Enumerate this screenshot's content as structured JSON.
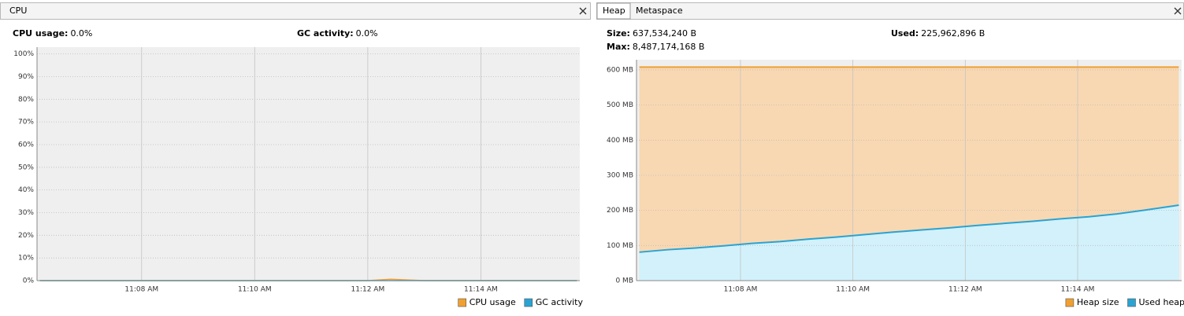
{
  "cpu_panel": {
    "tab": "CPU",
    "stats": [
      {
        "label": "CPU usage:",
        "value": "0.0%"
      },
      {
        "label": "GC activity:",
        "value": "0.0%"
      }
    ]
  },
  "memory_panel": {
    "tabs": [
      "Heap",
      "Metaspace"
    ],
    "stats": [
      {
        "label": "Size:",
        "value": "637,534,240 B"
      },
      {
        "label": "Max:",
        "value": "8,487,174,168 B"
      },
      {
        "label": "Used:",
        "value": "225,962,896 B"
      }
    ]
  },
  "chart_data": [
    {
      "type": "line",
      "grid": true,
      "legend": "bottom right",
      "xlim": [
        666.15,
        675.75
      ],
      "xticks": [
        {
          "value": 668,
          "label": "11:08 AM"
        },
        {
          "value": 670,
          "label": "11:10 AM"
        },
        {
          "value": 672,
          "label": "11:12 AM"
        },
        {
          "value": 674,
          "label": "11:14 AM"
        }
      ],
      "ylim": [
        0,
        103
      ],
      "yticks": [
        {
          "value": 0,
          "label": "0%"
        },
        {
          "value": 10,
          "label": "10%"
        },
        {
          "value": 20,
          "label": "20%"
        },
        {
          "value": 30,
          "label": "30%"
        },
        {
          "value": 40,
          "label": "40%"
        },
        {
          "value": 50,
          "label": "50%"
        },
        {
          "value": 60,
          "label": "60%"
        },
        {
          "value": 70,
          "label": "70%"
        },
        {
          "value": 80,
          "label": "80%"
        },
        {
          "value": 90,
          "label": "90%"
        },
        {
          "value": 100,
          "label": "100%"
        }
      ],
      "x": [
        666.2,
        667,
        668,
        669,
        670,
        671,
        672,
        672.4,
        673,
        674,
        675,
        675.7
      ],
      "series": [
        {
          "name": "CPU usage",
          "color": "#f0a030",
          "values": [
            0,
            0,
            0,
            0,
            0,
            0,
            0,
            0.6,
            0,
            0,
            0,
            0
          ]
        },
        {
          "name": "GC activity",
          "color": "#2aa3d3",
          "values": [
            0,
            0,
            0,
            0,
            0,
            0,
            0,
            0,
            0,
            0,
            0,
            0
          ]
        }
      ]
    },
    {
      "type": "area",
      "grid": true,
      "legend": "bottom right",
      "xlim": [
        666.15,
        675.85
      ],
      "xticks": [
        {
          "value": 668,
          "label": "11:08 AM"
        },
        {
          "value": 670,
          "label": "11:10 AM"
        },
        {
          "value": 672,
          "label": "11:12 AM"
        },
        {
          "value": 674,
          "label": "11:14 AM"
        }
      ],
      "ylim": [
        0,
        629
      ],
      "yticks": [
        {
          "value": 0,
          "label": "0 MB"
        },
        {
          "value": 100,
          "label": "100 MB"
        },
        {
          "value": 200,
          "label": "200 MB"
        },
        {
          "value": 300,
          "label": "300 MB"
        },
        {
          "value": 400,
          "label": "400 MB"
        },
        {
          "value": 500,
          "label": "500 MB"
        },
        {
          "value": 600,
          "label": "600 MB"
        }
      ],
      "x": [
        666.2,
        666.7,
        667.2,
        667.7,
        668.2,
        668.7,
        669.2,
        669.7,
        670.2,
        670.7,
        671.2,
        671.7,
        672.2,
        672.7,
        673.2,
        673.7,
        674.2,
        674.7,
        675.2,
        675.8
      ],
      "series": [
        {
          "name": "Heap size",
          "color": "#f0a030",
          "fill": "#f8d8b2",
          "values": [
            608,
            608,
            608,
            608,
            608,
            608,
            608,
            608,
            608,
            608,
            608,
            608,
            608,
            608,
            608,
            608,
            608,
            608,
            608,
            608
          ]
        },
        {
          "name": "Used heap",
          "color": "#2aa3d3",
          "fill": "#d2f1fb",
          "values": [
            81,
            88,
            93,
            99,
            106,
            111,
            118,
            124,
            131,
            138,
            144,
            150,
            157,
            163,
            169,
            176,
            182,
            190,
            201,
            215
          ]
        }
      ]
    }
  ]
}
